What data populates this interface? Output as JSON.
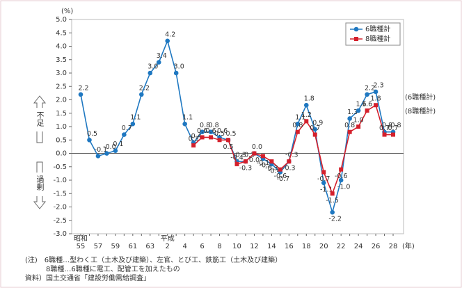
{
  "chart_data": {
    "type": "line",
    "y_unit": "(%)",
    "x_unit": "(年)",
    "era_labels": [
      {
        "label": "昭和",
        "at": "55"
      },
      {
        "label": "平成",
        "at": "2"
      }
    ],
    "side_labels": {
      "upper": "不足",
      "lower": "過剰"
    },
    "end_labels": [
      "(6職種計)",
      "(8職種計)"
    ],
    "categories": [
      "55",
      null,
      "57",
      null,
      "59",
      null,
      "61",
      null,
      "63",
      null,
      "2",
      null,
      "4",
      null,
      "6",
      null,
      "8",
      null,
      "10",
      null,
      "12",
      null,
      "14",
      null,
      "16",
      null,
      "18",
      null,
      "20",
      null,
      "22",
      null,
      "24",
      null,
      "26",
      null,
      "28"
    ],
    "series": [
      {
        "name": "6職種計",
        "color": "#1f78c1",
        "values": [
          2.2,
          0.5,
          -0.1,
          0,
          0.1,
          0.7,
          1.1,
          2.2,
          3.0,
          3.4,
          4.2,
          3.0,
          1.1,
          0.4,
          0.8,
          0.8,
          0.6,
          0.5,
          -0.3,
          -0.3,
          0.0,
          -0.2,
          -0.4,
          -0.7,
          -0.3,
          1.1,
          1.8,
          0.9,
          -1.1,
          -2.2,
          -1.0,
          1.3,
          1.6,
          2.2,
          2.3,
          0.8,
          0.8
        ],
        "value_labels": [
          "2.2",
          "0.5",
          "-0.1",
          "-0.0",
          "0.1",
          "0.7",
          "1.1",
          "2.2",
          "3.0",
          "3.4",
          "4.2",
          "3.0",
          "1.1",
          "0.4",
          "0.8",
          "0.8",
          "0.6",
          "0.5",
          "-0.3",
          "-0.3",
          "0.0",
          "-0.2",
          "-0.4",
          "-0.7",
          "-0.3",
          "1.1",
          "1.8",
          "0.9",
          "-1.1",
          "-2.2",
          "-1.0",
          "1.3",
          "1.6",
          "2.2",
          "2.3",
          "0.8",
          "0.8"
        ]
      },
      {
        "name": "8職種計",
        "color": "#d4202c",
        "values": [
          null,
          null,
          null,
          null,
          null,
          null,
          null,
          null,
          null,
          null,
          null,
          null,
          null,
          0.3,
          0.6,
          0.6,
          0.5,
          0.5,
          -0.4,
          -0.3,
          0.0,
          -0.1,
          -0.3,
          -0.6,
          -0.3,
          0.8,
          1.2,
          0.7,
          -0.7,
          -1.5,
          -0.6,
          0.8,
          1.0,
          1.6,
          1.8,
          0.7,
          0.7
        ],
        "value_labels": [
          null,
          null,
          null,
          null,
          null,
          null,
          null,
          null,
          null,
          null,
          null,
          null,
          null,
          "0.3",
          "0.6",
          "0.6",
          "0.5",
          "0.5",
          "-0.4",
          "-0.3",
          "0.0",
          "-0.1",
          "-0.3",
          "-0.6",
          "-0.3",
          "0.8",
          "1.2",
          "0.7",
          "-0.7",
          "-1.5",
          "-0.6",
          "0.8",
          "1.0",
          "1.6",
          "1.8",
          "0.7",
          "0.7"
        ]
      }
    ],
    "ylim": [
      -3.0,
      5.0
    ],
    "yticks": [
      {
        "value": -3,
        "label": "-3.0"
      },
      {
        "value": -2.5,
        "label": "-2.5"
      },
      {
        "value": -2,
        "label": "-2.0"
      },
      {
        "value": -1.5,
        "label": "-1.5"
      },
      {
        "value": -1,
        "label": "-1.0"
      },
      {
        "value": -0.5,
        "label": "-0.5"
      },
      {
        "value": 0,
        "label": "0.0"
      },
      {
        "value": 0.5,
        "label": "0.5"
      },
      {
        "value": 1,
        "label": "1.0"
      },
      {
        "value": 1.5,
        "label": "1.5"
      },
      {
        "value": 2,
        "label": "2.0"
      },
      {
        "value": 2.5,
        "label": "2.5"
      },
      {
        "value": 3,
        "label": "3.0"
      },
      {
        "value": 3.5,
        "label": "3.5"
      },
      {
        "value": 4,
        "label": "4.0"
      },
      {
        "value": 4.5,
        "label": "4.5"
      },
      {
        "value": 5,
        "label": "5.0"
      }
    ],
    "legend": "top-right",
    "notes": [
      "(注)　6職種…型わく工（土木及び建築）、左官、とび工、鉄筋工（土木及び建築）",
      "　　　8職種…6職種に電工、配管工を加えたもの",
      "資料）国土交通省「建設労働需給調査」"
    ]
  }
}
